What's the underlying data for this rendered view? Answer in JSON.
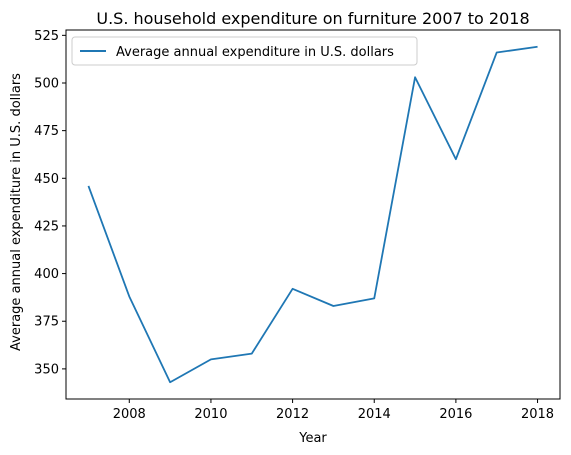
{
  "chart_data": {
    "type": "line",
    "title": "U.S. household expenditure on furniture 2007 to 2018",
    "xlabel": "Year",
    "ylabel": "Average annual expenditure in U.S. dollars",
    "x": [
      2007,
      2008,
      2009,
      2010,
      2011,
      2012,
      2013,
      2014,
      2015,
      2016,
      2017,
      2018
    ],
    "series": [
      {
        "name": "Average annual expenditure in U.S. dollars",
        "color": "#1f77b4",
        "values": [
          446,
          388,
          343,
          355,
          358,
          392,
          383,
          387,
          503,
          460,
          516,
          519
        ]
      }
    ],
    "xticks": [
      "2008",
      "2010",
      "2012",
      "2014",
      "2016",
      "2018"
    ],
    "yticks": [
      "350",
      "375",
      "400",
      "425",
      "450",
      "475",
      "500",
      "525"
    ],
    "xlim": [
      2006.45,
      2018.55
    ],
    "ylim": [
      334.2,
      527.8
    ],
    "grid": false,
    "legend": "top-left"
  }
}
